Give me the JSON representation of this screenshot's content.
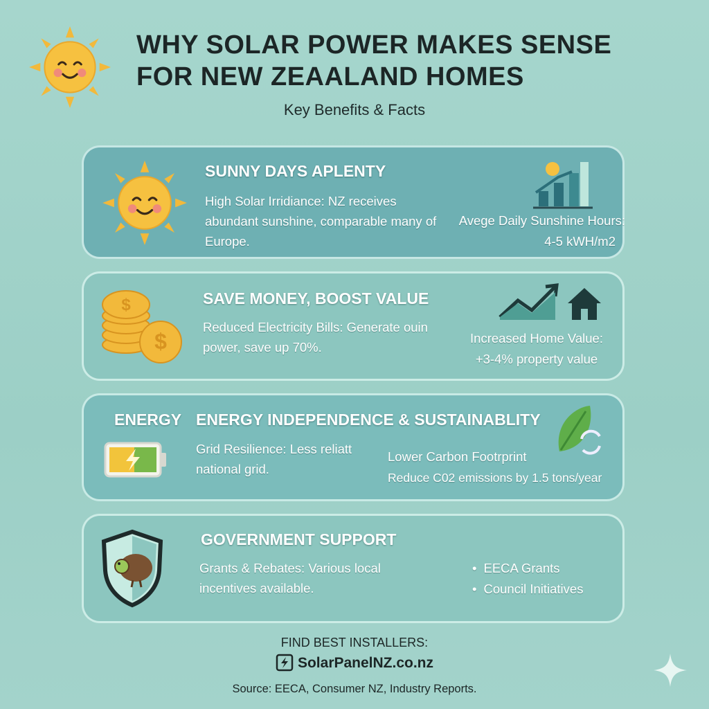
{
  "header": {
    "title_lines": [
      "WHY SOLAR POWER MAKES SENSE",
      "FOR NEW ZEAALAND HOMES"
    ],
    "subtitle": "Key Benefits & Facts"
  },
  "cards": [
    {
      "title": "SUNNY DAYS APLENTY",
      "body": "High Solar Irridiance: NZ receives abundant sunshine, comparable many of Europe.",
      "side": [
        "Avege Daily Sunshine Hours:",
        "4-5 kWH/m2"
      ]
    },
    {
      "title": "SAVE MONEY, BOOST VALUE",
      "body": "Reduced Electricity Bills: Generate ouin power, save up 70%.",
      "side": [
        "Increased Home Value:",
        "+3-4% property value"
      ]
    },
    {
      "label": "ENERGY",
      "title": "ENERGY INDEPENDENCE & SUSTAINABLITY",
      "body": "Grid Resilience: Less reliatt national grid.",
      "side": [
        "Lower Carbon Footrprint",
        "Reduce C02 emissions by 1.5 tons/year"
      ]
    },
    {
      "title": "GOVERNMENT SUPPORT",
      "body": "Grants & Rebates: Various local incentives available.",
      "bullets": [
        "EECA Grants",
        "Council Initiatives"
      ]
    }
  ],
  "footer": {
    "cta": "FIND BEST INSTALLERS:",
    "link": "SolarPanelNZ.co.nz",
    "source": "Source: EECA, Consumer NZ, Industry Reports."
  }
}
